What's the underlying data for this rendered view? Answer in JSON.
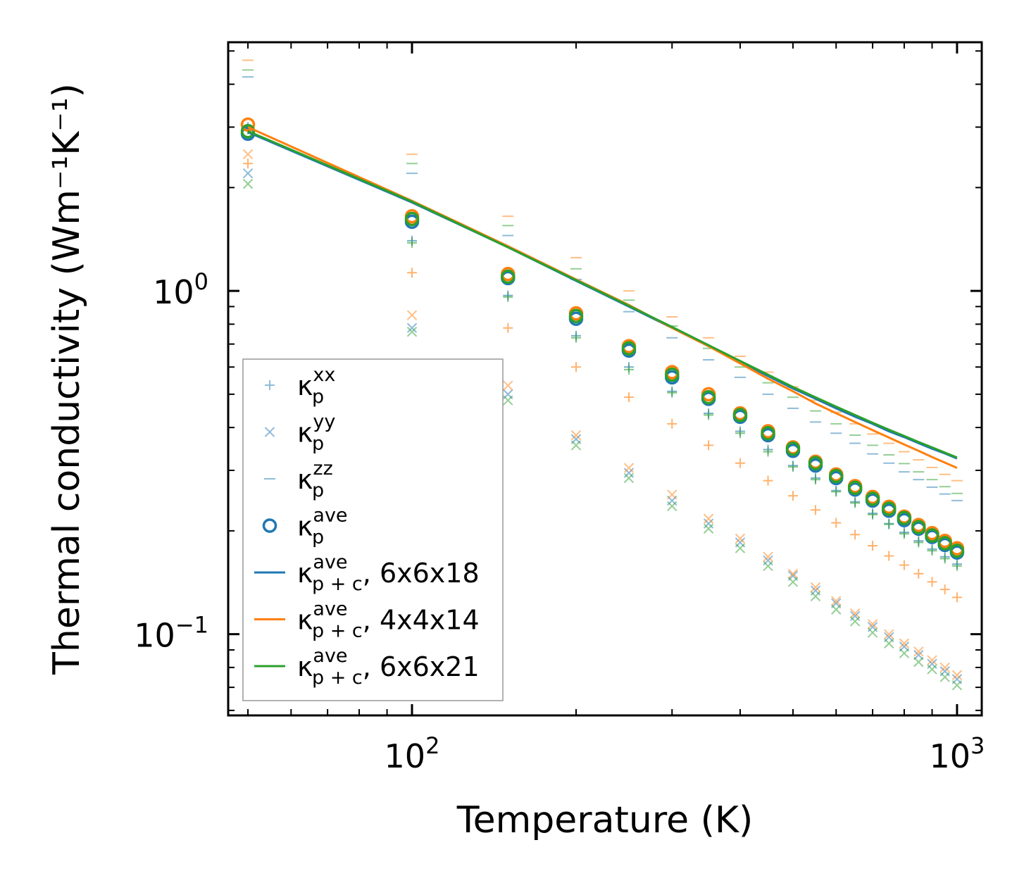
{
  "chart_data": {
    "type": "scatter",
    "xscale": "log",
    "yscale": "log",
    "xlim": [
      46,
      1110
    ],
    "ylim": [
      0.058,
      5.3
    ],
    "xlabel": "Temperature (K)",
    "ylabel": "Thermal conductivity (Wm⁻¹K⁻¹)",
    "x_ticks": [
      {
        "value": 100,
        "base": "10",
        "exp": "2"
      },
      {
        "value": 1000,
        "base": "10",
        "exp": "3"
      }
    ],
    "y_ticks": [
      {
        "value": 0.1,
        "base": "10",
        "exp": "−1"
      },
      {
        "value": 1,
        "base": "10",
        "exp": "0"
      }
    ],
    "x": [
      50,
      100,
      150,
      200,
      250,
      300,
      350,
      400,
      450,
      500,
      550,
      600,
      650,
      700,
      750,
      800,
      850,
      900,
      950,
      1000
    ],
    "colors": {
      "blue": "#1f77b4",
      "orange": "#ff7f0e",
      "green": "#2ca02c"
    },
    "cases": [
      {
        "key": "6x6x18",
        "color": "#1f77b4",
        "kxx": [
          3.0,
          1.4,
          0.97,
          0.74,
          0.6,
          0.51,
          0.44,
          0.39,
          0.345,
          0.31,
          0.285,
          0.262,
          0.243,
          0.225,
          0.21,
          0.198,
          0.187,
          0.177,
          0.168,
          0.16
        ],
        "kyy": [
          2.2,
          0.78,
          0.5,
          0.37,
          0.295,
          0.245,
          0.21,
          0.185,
          0.164,
          0.148,
          0.134,
          0.123,
          0.113,
          0.105,
          0.098,
          0.092,
          0.087,
          0.082,
          0.078,
          0.074
        ],
        "kzz": [
          4.2,
          2.2,
          1.45,
          1.08,
          0.87,
          0.73,
          0.63,
          0.56,
          0.5,
          0.455,
          0.415,
          0.385,
          0.36,
          0.335,
          0.315,
          0.297,
          0.282,
          0.268,
          0.256,
          0.245
        ],
        "kave": [
          2.87,
          1.59,
          1.09,
          0.83,
          0.67,
          0.56,
          0.485,
          0.43,
          0.38,
          0.342,
          0.31,
          0.285,
          0.264,
          0.245,
          0.229,
          0.215,
          0.203,
          0.192,
          0.182,
          0.173
        ],
        "kpc": [
          2.9,
          1.81,
          1.34,
          1.07,
          0.9,
          0.78,
          0.69,
          0.62,
          0.565,
          0.52,
          0.485,
          0.455,
          0.43,
          0.41,
          0.39,
          0.375,
          0.36,
          0.347,
          0.336,
          0.325
        ]
      },
      {
        "key": "4x4x14",
        "color": "#ff7f0e",
        "kxx": [
          2.35,
          1.13,
          0.78,
          0.6,
          0.49,
          0.41,
          0.355,
          0.315,
          0.28,
          0.253,
          0.23,
          0.211,
          0.195,
          0.181,
          0.169,
          0.159,
          0.15,
          0.142,
          0.135,
          0.128
        ],
        "kyy": [
          2.5,
          0.85,
          0.53,
          0.38,
          0.305,
          0.255,
          0.217,
          0.19,
          0.168,
          0.15,
          0.137,
          0.125,
          0.115,
          0.107,
          0.1,
          0.094,
          0.089,
          0.084,
          0.08,
          0.076
        ],
        "kzz": [
          4.7,
          2.5,
          1.65,
          1.25,
          1.0,
          0.84,
          0.73,
          0.645,
          0.58,
          0.525,
          0.48,
          0.443,
          0.41,
          0.383,
          0.36,
          0.34,
          0.322,
          0.306,
          0.292,
          0.28
        ],
        "kave": [
          3.05,
          1.65,
          1.12,
          0.86,
          0.69,
          0.58,
          0.5,
          0.44,
          0.39,
          0.35,
          0.318,
          0.292,
          0.27,
          0.251,
          0.235,
          0.22,
          0.208,
          0.197,
          0.187,
          0.178
        ],
        "kpc": [
          3.0,
          1.83,
          1.35,
          1.08,
          0.91,
          0.78,
          0.69,
          0.615,
          0.555,
          0.51,
          0.47,
          0.44,
          0.415,
          0.393,
          0.374,
          0.357,
          0.342,
          0.328,
          0.316,
          0.305
        ]
      },
      {
        "key": "6x6x21",
        "color": "#2ca02c",
        "kxx": [
          2.95,
          1.38,
          0.96,
          0.73,
          0.59,
          0.505,
          0.435,
          0.385,
          0.34,
          0.307,
          0.282,
          0.26,
          0.241,
          0.223,
          0.209,
          0.196,
          0.185,
          0.175,
          0.166,
          0.158
        ],
        "kyy": [
          2.05,
          0.76,
          0.48,
          0.355,
          0.285,
          0.236,
          0.203,
          0.178,
          0.158,
          0.142,
          0.129,
          0.118,
          0.109,
          0.101,
          0.094,
          0.088,
          0.083,
          0.079,
          0.075,
          0.071
        ],
        "kzz": [
          4.4,
          2.35,
          1.55,
          1.16,
          0.94,
          0.79,
          0.68,
          0.6,
          0.54,
          0.49,
          0.447,
          0.41,
          0.38,
          0.355,
          0.333,
          0.314,
          0.297,
          0.282,
          0.269,
          0.257
        ],
        "kave": [
          2.92,
          1.62,
          1.1,
          0.845,
          0.68,
          0.57,
          0.49,
          0.435,
          0.385,
          0.347,
          0.315,
          0.289,
          0.267,
          0.248,
          0.232,
          0.218,
          0.205,
          0.194,
          0.184,
          0.175
        ],
        "kpc": [
          2.92,
          1.82,
          1.34,
          1.075,
          0.905,
          0.785,
          0.695,
          0.625,
          0.57,
          0.525,
          0.49,
          0.46,
          0.435,
          0.413,
          0.394,
          0.378,
          0.363,
          0.35,
          0.338,
          0.327
        ]
      }
    ],
    "legend": {
      "position": "lower-left",
      "entries": [
        {
          "marker": "plus",
          "color": "#1f77b4",
          "alpha": 0.5,
          "base": "κ",
          "sup": "xx",
          "sub": "p",
          "suffix": ""
        },
        {
          "marker": "cross",
          "color": "#1f77b4",
          "alpha": 0.5,
          "base": "κ",
          "sup": "yy",
          "sub": "p",
          "suffix": ""
        },
        {
          "marker": "hline",
          "color": "#1f77b4",
          "alpha": 0.5,
          "base": "κ",
          "sup": "zz",
          "sub": "p",
          "suffix": ""
        },
        {
          "marker": "circle",
          "color": "#1f77b4",
          "alpha": 1,
          "base": "κ",
          "sup": "ave",
          "sub": "p",
          "suffix": ""
        },
        {
          "marker": "line",
          "color": "#1f77b4",
          "alpha": 1,
          "base": "κ",
          "sup": "ave",
          "sub": "p + c",
          "suffix": ", 6x6x18"
        },
        {
          "marker": "line",
          "color": "#ff7f0e",
          "alpha": 1,
          "base": "κ",
          "sup": "ave",
          "sub": "p + c",
          "suffix": ", 4x4x14"
        },
        {
          "marker": "line",
          "color": "#2ca02c",
          "alpha": 1,
          "base": "κ",
          "sup": "ave",
          "sub": "p + c",
          "suffix": ", 6x6x21"
        }
      ]
    }
  }
}
